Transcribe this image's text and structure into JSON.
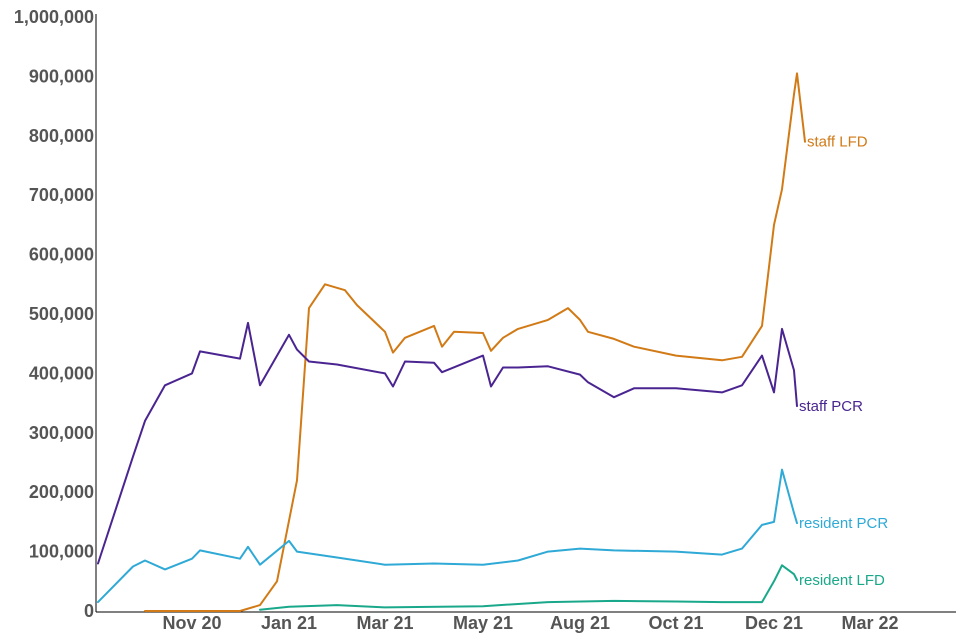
{
  "chart_data": {
    "type": "line",
    "title": "",
    "xlabel": "",
    "ylabel": "",
    "x_tick_labels": [
      "Nov 20",
      "Jan 21",
      "Mar 21",
      "May 21",
      "Aug 21",
      "Oct 21",
      "Dec 21",
      "Mar 22"
    ],
    "y_tick_labels": [
      "0",
      "100,000",
      "200,000",
      "300,000",
      "400,000",
      "500,000",
      "600,000",
      "700,000",
      "800,000",
      "900,000",
      "1,000,000"
    ],
    "ylim": [
      0,
      1000000
    ],
    "grid": false,
    "legend": "direct labels at line ends",
    "series": [
      {
        "name": "staff LFD",
        "color": "#d17a16",
        "points": [
          [
            "Oct 20",
            0
          ],
          [
            "Nov 20",
            0
          ],
          [
            "Dec 20",
            0
          ],
          [
            "late Dec 20",
            10000
          ],
          [
            "early Jan 21",
            50000
          ],
          [
            "mid Jan 21",
            220000
          ],
          [
            "late Jan 21",
            510000
          ],
          [
            "early Feb 21",
            550000
          ],
          [
            "mid Feb 21",
            540000
          ],
          [
            "late Feb 21",
            515000
          ],
          [
            "Mar 21",
            470000
          ],
          [
            "mid Mar 21",
            435000
          ],
          [
            "late Mar 21",
            460000
          ],
          [
            "Apr 21",
            480000
          ],
          [
            "mid Apr 21",
            445000
          ],
          [
            "late Apr 21",
            470000
          ],
          [
            "May 21",
            468000
          ],
          [
            "mid May 21",
            438000
          ],
          [
            "late May 21",
            460000
          ],
          [
            "Jun 21",
            475000
          ],
          [
            "Jul 21",
            490000
          ],
          [
            "late Jul 21",
            510000
          ],
          [
            "Aug 21",
            490000
          ],
          [
            "mid Aug 21",
            470000
          ],
          [
            "Sep 21",
            458000
          ],
          [
            "late Sep 21",
            445000
          ],
          [
            "Oct 21",
            430000
          ],
          [
            "Nov 21",
            422000
          ],
          [
            "late Nov 21",
            428000
          ],
          [
            "early Dec 21",
            480000
          ],
          [
            "Dec 21",
            650000
          ],
          [
            "mid Dec 21",
            710000
          ],
          [
            "late Dec 21",
            870000
          ],
          [
            "Jan 22",
            905000
          ],
          [
            "mid Jan 22",
            790000
          ]
        ]
      },
      {
        "name": "staff PCR",
        "color": "#4a2591",
        "points": [
          [
            "Sep 20",
            80000
          ],
          [
            "early Oct 20",
            260000
          ],
          [
            "Oct 20",
            320000
          ],
          [
            "late Oct 20",
            380000
          ],
          [
            "Nov 20",
            400000
          ],
          [
            "mid Nov 20",
            437000
          ],
          [
            "Dec 20",
            425000
          ],
          [
            "mid Dec 20",
            485000
          ],
          [
            "late Dec 20",
            380000
          ],
          [
            "Jan 21",
            465000
          ],
          [
            "mid Jan 21",
            440000
          ],
          [
            "late Jan 21",
            420000
          ],
          [
            "Feb 21",
            415000
          ],
          [
            "Mar 21",
            400000
          ],
          [
            "mid Mar 21",
            378000
          ],
          [
            "late Mar 21",
            420000
          ],
          [
            "Apr 21",
            418000
          ],
          [
            "mid Apr 21",
            402000
          ],
          [
            "May 21",
            430000
          ],
          [
            "mid May 21",
            378000
          ],
          [
            "late May 21",
            410000
          ],
          [
            "Jun 21",
            410000
          ],
          [
            "Jul 21",
            412000
          ],
          [
            "Aug 21",
            398000
          ],
          [
            "mid Aug 21",
            385000
          ],
          [
            "Sep 21",
            360000
          ],
          [
            "late Sep 21",
            375000
          ],
          [
            "Oct 21",
            375000
          ],
          [
            "Nov 21",
            368000
          ],
          [
            "late Nov 21",
            380000
          ],
          [
            "early Dec 21",
            430000
          ],
          [
            "Dec 21",
            368000
          ],
          [
            "mid Dec 21",
            475000
          ],
          [
            "late Dec 21",
            405000
          ],
          [
            "Jan 22",
            345000
          ]
        ]
      },
      {
        "name": "resident PCR",
        "color": "#2fa9d6",
        "points": [
          [
            "Sep 20",
            15000
          ],
          [
            "early Oct 20",
            75000
          ],
          [
            "Oct 20",
            85000
          ],
          [
            "late Oct 20",
            70000
          ],
          [
            "Nov 20",
            88000
          ],
          [
            "mid Nov 20",
            102000
          ],
          [
            "Dec 20",
            88000
          ],
          [
            "mid Dec 20",
            108000
          ],
          [
            "late Dec 20",
            78000
          ],
          [
            "Jan 21",
            118000
          ],
          [
            "mid Jan 21",
            100000
          ],
          [
            "Feb 21",
            90000
          ],
          [
            "Mar 21",
            78000
          ],
          [
            "Apr 21",
            80000
          ],
          [
            "May 21",
            78000
          ],
          [
            "Jun 21",
            85000
          ],
          [
            "Jul 21",
            100000
          ],
          [
            "Aug 21",
            105000
          ],
          [
            "Sep 21",
            102000
          ],
          [
            "Oct 21",
            100000
          ],
          [
            "Nov 21",
            95000
          ],
          [
            "late Nov 21",
            105000
          ],
          [
            "early Dec 21",
            145000
          ],
          [
            "Dec 21",
            150000
          ],
          [
            "mid Dec 21",
            238000
          ],
          [
            "late Dec 21",
            165000
          ],
          [
            "Jan 22",
            148000
          ]
        ]
      },
      {
        "name": "resident LFD",
        "color": "#1aa88a",
        "points": [
          [
            "late Dec 20",
            2000
          ],
          [
            "Jan 21",
            7000
          ],
          [
            "Feb 21",
            10000
          ],
          [
            "Mar 21",
            6000
          ],
          [
            "May 21",
            8000
          ],
          [
            "Jul 21",
            15000
          ],
          [
            "Sep 21",
            17000
          ],
          [
            "Oct 21",
            16000
          ],
          [
            "Nov 21",
            15000
          ],
          [
            "early Dec 21",
            15000
          ],
          [
            "Dec 21",
            50000
          ],
          [
            "mid Dec 21",
            77000
          ],
          [
            "late Dec 21",
            62000
          ],
          [
            "Jan 22",
            52000
          ]
        ]
      }
    ]
  }
}
